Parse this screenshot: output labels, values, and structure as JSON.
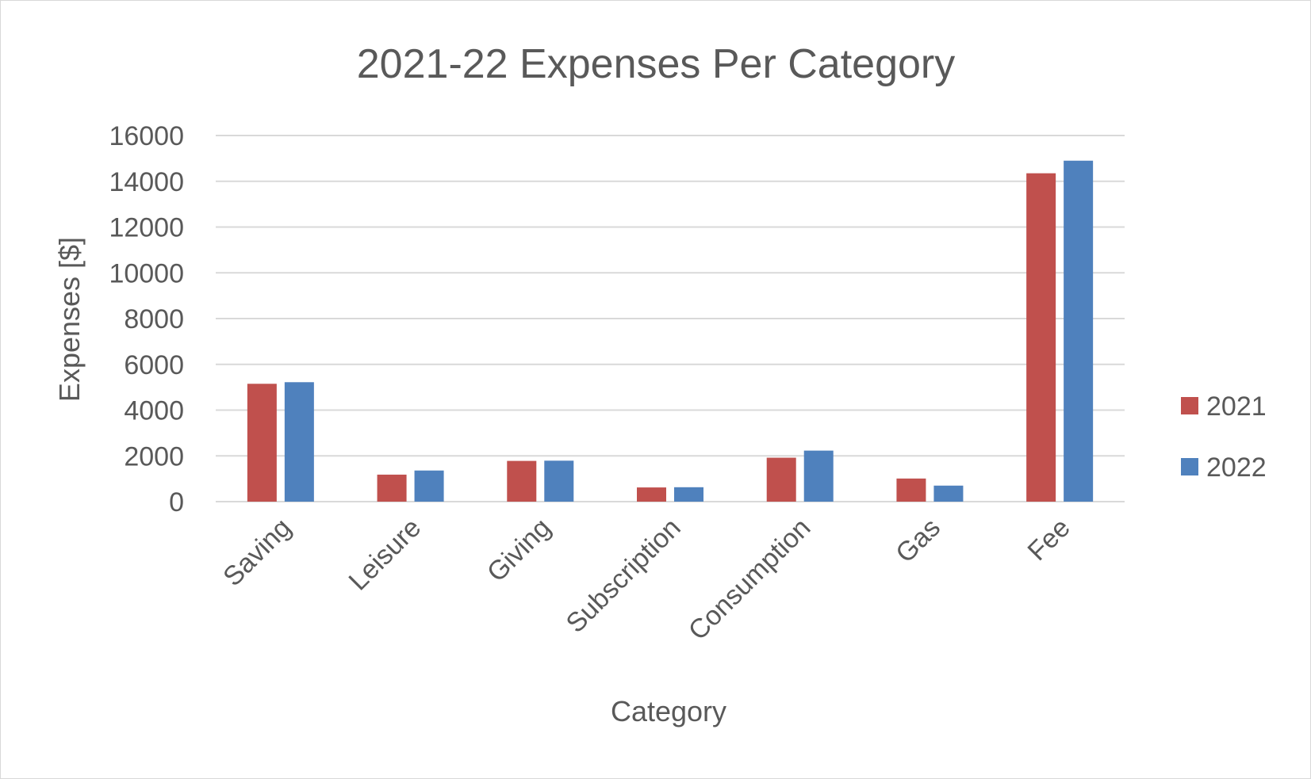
{
  "chart_data": {
    "type": "bar",
    "title": "2021-22 Expenses Per Category",
    "xlabel": "Category",
    "ylabel": "Expenses [$]",
    "categories": [
      "Saving",
      "Leisure",
      "Giving",
      "Subscription",
      "Consumption",
      "Gas",
      "Fee"
    ],
    "series": [
      {
        "name": "2021",
        "color": "#c0504d",
        "values": [
          5150,
          1180,
          1780,
          620,
          1920,
          1010,
          14350
        ]
      },
      {
        "name": "2022",
        "color": "#4f81bd",
        "values": [
          5220,
          1360,
          1790,
          630,
          2230,
          700,
          14900
        ]
      }
    ],
    "ylim": [
      0,
      16000
    ],
    "yticks": [
      "0",
      "2000",
      "4000",
      "6000",
      "8000",
      "10000",
      "12000",
      "14000",
      "16000"
    ],
    "grid": true,
    "legend": "right"
  }
}
